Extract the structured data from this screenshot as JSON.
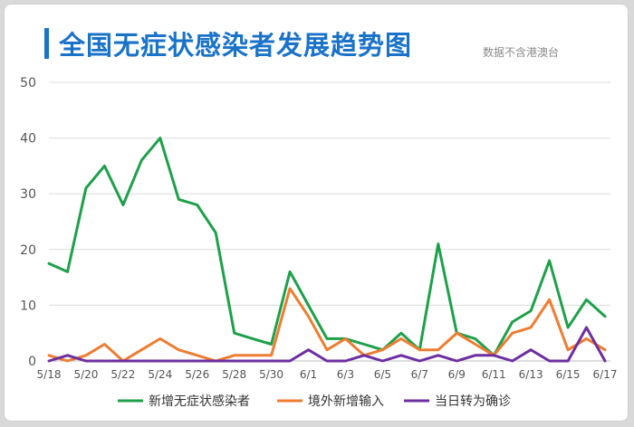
{
  "title": "全国无症状感染者发展趋势图",
  "note": "数据不含港澳台",
  "chart_data": {
    "type": "line",
    "x": [
      "5/18",
      "5/19",
      "5/20",
      "5/21",
      "5/22",
      "5/23",
      "5/24",
      "5/25",
      "5/26",
      "5/27",
      "5/28",
      "5/29",
      "5/30",
      "5/31",
      "6/1",
      "6/2",
      "6/3",
      "6/4",
      "6/5",
      "6/6",
      "6/7",
      "6/8",
      "6/9",
      "6/10",
      "6/11",
      "6/12",
      "6/13",
      "6/14",
      "6/15",
      "6/16",
      "6/17"
    ],
    "x_tick_labels": [
      "5/18",
      "5/20",
      "5/22",
      "5/24",
      "5/26",
      "5/28",
      "5/30",
      "6/1",
      "6/3",
      "6/5",
      "6/7",
      "6/9",
      "6/11",
      "6/13",
      "6/15",
      "6/17"
    ],
    "ylim": [
      0,
      50
    ],
    "y_ticks": [
      0,
      10,
      20,
      30,
      40,
      50
    ],
    "grid": "horizontal",
    "legend_position": "bottom",
    "series": [
      {
        "name": "新增无症状感染者",
        "color": "#1ea04a",
        "values": [
          17.5,
          16,
          31,
          35,
          28,
          36,
          40,
          29,
          28,
          23,
          5,
          4,
          3,
          16,
          10,
          4,
          4,
          3,
          2,
          5,
          2,
          21,
          5,
          4,
          1,
          7,
          9,
          18,
          6,
          11,
          8
        ]
      },
      {
        "name": "境外新增输入",
        "color": "#ee7d31",
        "values": [
          1,
          0,
          1,
          3,
          0,
          2,
          4,
          2,
          1,
          0,
          1,
          1,
          1,
          13,
          8,
          2,
          4,
          1,
          2,
          4,
          2,
          2,
          5,
          3,
          1,
          5,
          6,
          11,
          2,
          4,
          2
        ]
      },
      {
        "name": "当日转为确诊",
        "color": "#6d2fa0",
        "values": [
          0,
          1,
          0,
          0,
          0,
          0,
          0,
          0,
          0,
          0,
          0,
          0,
          0,
          0,
          2,
          0,
          0,
          1,
          0,
          1,
          0,
          1,
          0,
          1,
          1,
          0,
          2,
          0,
          0,
          6,
          0
        ]
      }
    ]
  }
}
